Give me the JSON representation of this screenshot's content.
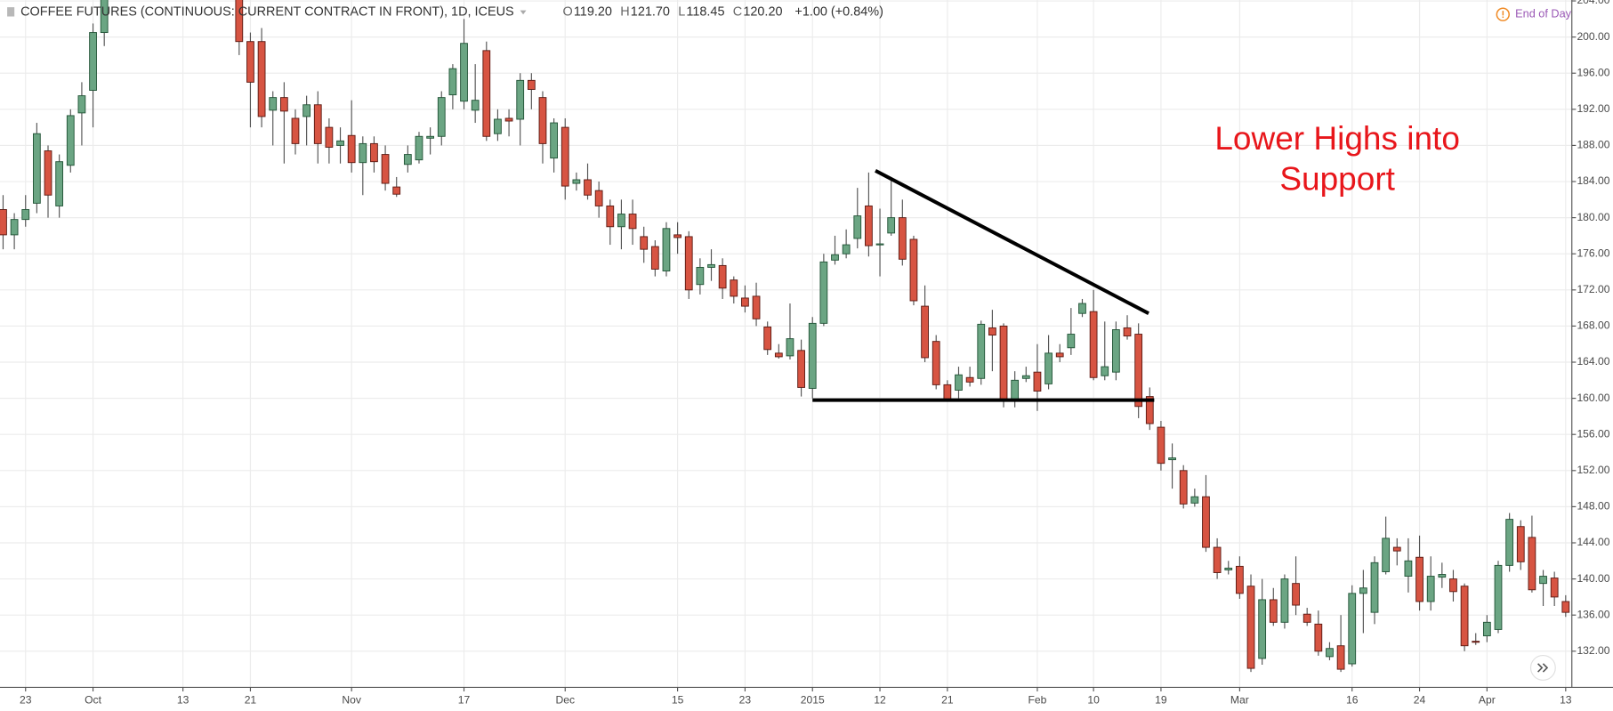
{
  "chart_data": {
    "type": "candlestick",
    "title": "COFFEE FUTURES (CONTINUOUS: CURRENT CONTRACT IN FRONT), 1D, ICEUS",
    "ohlc_legend": [
      {
        "key": "O",
        "value": "119.20"
      },
      {
        "key": "H",
        "value": "121.70"
      },
      {
        "key": "L",
        "value": "118.45"
      },
      {
        "key": "C",
        "value": "120.20"
      }
    ],
    "change": "+1.00 (+0.84%)",
    "status": "End of Day",
    "annotation": [
      "Lower Highs into",
      "Support"
    ],
    "annotation_color": "#e8161b",
    "up_color": "#6ba583",
    "down_color": "#d75442",
    "grid": true,
    "categories": [
      null,
      null,
      "23",
      null,
      null,
      null,
      null,
      null,
      "Oct",
      null,
      null,
      null,
      null,
      null,
      null,
      null,
      "13",
      null,
      null,
      null,
      null,
      null,
      "21",
      null,
      null,
      null,
      null,
      null,
      null,
      null,
      null,
      "Nov",
      null,
      null,
      null,
      null,
      null,
      null,
      null,
      null,
      null,
      "17",
      null,
      null,
      null,
      null,
      null,
      null,
      null,
      null,
      "Dec",
      null,
      null,
      null,
      null,
      null,
      null,
      null,
      null,
      null,
      "15",
      null,
      null,
      null,
      null,
      null,
      "23",
      null,
      null,
      null,
      null,
      null,
      "2015",
      null,
      null,
      null,
      null,
      null,
      "12",
      null,
      null,
      null,
      null,
      null,
      "21",
      null,
      null,
      null,
      null,
      null,
      null,
      null,
      "Feb",
      null,
      null,
      null,
      null,
      "10",
      null,
      null,
      null,
      null,
      null,
      "19",
      null,
      null,
      null,
      null,
      null,
      null,
      "Mar",
      null,
      null,
      null,
      null,
      null,
      null,
      null,
      null,
      null,
      "16",
      null,
      null,
      null,
      null,
      null,
      "24",
      null,
      null,
      null,
      null,
      null,
      "Apr",
      null,
      null,
      null,
      null,
      null,
      null,
      "13"
    ],
    "open": [
      180.9,
      178.1,
      179.8,
      181.6,
      187.4,
      181.3,
      185.8,
      191.6,
      194.1,
      200.5,
      null,
      null,
      null,
      null,
      null,
      null,
      null,
      null,
      null,
      null,
      null,
      205,
      199.5,
      199.5,
      191.9,
      193.3,
      191,
      191.2,
      192.5,
      190,
      188,
      189.1,
      186.1,
      188.2,
      187,
      183.4,
      185.9,
      186.4,
      188.8,
      189,
      193.6,
      192.9,
      191.9,
      198.5,
      189.3,
      191,
      190.9,
      195.2,
      193.3,
      186.6,
      190,
      183.8,
      184.2,
      183,
      181.3,
      179,
      180.4,
      177.9,
      176.8,
      174.1,
      178.1,
      177.9,
      172.6,
      174.5,
      174.7,
      173.1,
      171.1,
      171.3,
      167.9,
      165,
      164.7,
      165.3,
      161.1,
      168.3,
      175.3,
      176,
      177.7,
      181.3,
      177,
      178.3,
      180,
      177.6,
      170.2,
      166.3,
      161.5,
      160.9,
      162.3,
      162.2,
      167.8,
      168,
      159.9,
      162.2,
      162.9,
      161.6,
      165,
      165.6,
      169.4,
      169.6,
      162.5,
      162.9,
      167.8,
      167.1,
      160.2,
      156.8,
      153.2,
      152,
      148.4,
      149.1,
      143.5,
      141,
      141.4,
      139.2,
      131.2,
      137.7,
      135.2,
      139.5,
      136.1,
      135,
      131.4,
      132.6,
      130.6,
      138.4,
      136.3,
      140.8,
      143.5,
      140.3,
      142.4,
      137.5,
      140.2,
      140,
      139.2,
      133.1,
      133.7,
      134.4,
      141.5,
      145.8,
      144.6,
      139.5,
      140.1,
      137.5
    ],
    "close": [
      178.1,
      179.8,
      180.9,
      189.3,
      182.5,
      186.2,
      191.3,
      193.5,
      200.5,
      206,
      null,
      null,
      null,
      null,
      null,
      null,
      null,
      null,
      null,
      null,
      null,
      199.5,
      195,
      191.2,
      193.3,
      191.8,
      188.2,
      192.5,
      188.2,
      187.8,
      188.5,
      186.1,
      188.2,
      186.2,
      183.8,
      182.6,
      187,
      189,
      189,
      193.3,
      196.5,
      199.3,
      193,
      189,
      190.9,
      190.7,
      195.2,
      194.2,
      188.2,
      190.5,
      183.5,
      184.2,
      182.5,
      181.3,
      179,
      180.4,
      178.8,
      176.5,
      174.3,
      178.8,
      177.8,
      172,
      174.5,
      174.8,
      172.2,
      171.3,
      170.2,
      168.8,
      165.4,
      164.6,
      166.6,
      161.2,
      168.3,
      175.1,
      175.9,
      177,
      180.2,
      176.9,
      177.1,
      180,
      175.4,
      170.8,
      164.5,
      161.5,
      159.9,
      162.6,
      161.8,
      168.2,
      167,
      159.9,
      162,
      162.5,
      160.8,
      165,
      164.6,
      167.1,
      170.5,
      162.3,
      163.5,
      167.6,
      166.9,
      159.1,
      157.2,
      152.8,
      153.4,
      148.3,
      149.1,
      143.5,
      140.7,
      141.2,
      138.4,
      130.1,
      137.7,
      135.2,
      140,
      137.1,
      135.2,
      132,
      132.3,
      130,
      138.4,
      139,
      141.8,
      144.5,
      143.1,
      142,
      137.5,
      140.3,
      140.5,
      138.6,
      132.6,
      133,
      135.2,
      141.5,
      146.6,
      141.9,
      138.8,
      140.3,
      138,
      136.3
    ],
    "high": [
      182.5,
      180.5,
      182.5,
      190.5,
      188,
      187,
      192,
      195,
      201.5,
      207,
      null,
      null,
      null,
      null,
      null,
      null,
      null,
      null,
      null,
      null,
      null,
      206,
      200.5,
      201,
      194,
      195,
      192,
      193.5,
      194,
      191,
      190,
      193,
      189,
      189,
      188,
      184.5,
      188,
      189.5,
      190,
      194,
      197,
      202,
      197,
      199.5,
      192,
      192,
      196,
      196,
      194,
      191,
      191,
      185,
      186,
      184,
      182,
      182,
      182,
      179,
      177.5,
      179.5,
      179.5,
      178.5,
      175.5,
      176.5,
      175.5,
      173.5,
      172.5,
      172.8,
      168.5,
      166,
      170.5,
      166.5,
      169,
      176,
      178,
      178.7,
      183.3,
      185,
      181,
      184.5,
      182,
      178,
      172.5,
      167,
      162,
      163.5,
      163.5,
      168.6,
      169.8,
      168.3,
      163,
      163.5,
      166,
      167,
      166,
      170,
      171,
      172,
      168.5,
      168.5,
      169.2,
      168.3,
      161.2,
      157.5,
      155,
      152.6,
      150,
      151.5,
      144.5,
      142,
      142.5,
      140.5,
      140,
      139,
      140.5,
      142.5,
      136.8,
      136.5,
      133,
      136,
      139.3,
      141,
      142.5,
      146.9,
      144.5,
      144.5,
      144.8,
      142.5,
      141.8,
      141,
      139.5,
      134,
      136,
      142,
      147.3,
      146.5,
      147,
      141,
      140.8,
      138.2
    ],
    "low": [
      176.5,
      176.5,
      179,
      180.5,
      180,
      180,
      185,
      188,
      190,
      199,
      null,
      null,
      null,
      null,
      null,
      null,
      null,
      null,
      null,
      null,
      null,
      198,
      190,
      190,
      188,
      186,
      187,
      188,
      186,
      186,
      186,
      185,
      182.5,
      185,
      183,
      182.3,
      185,
      186,
      187,
      188,
      192,
      192,
      190.5,
      188.5,
      188.5,
      189,
      188,
      192,
      186,
      185,
      182,
      183,
      182,
      180,
      177,
      176.5,
      177,
      175,
      173.5,
      173.5,
      176,
      171,
      171.5,
      173,
      171,
      170.5,
      169.5,
      168,
      164.8,
      164.4,
      164.3,
      160.2,
      160,
      168,
      174.8,
      175.5,
      176.6,
      175.7,
      173.5,
      178,
      174.7,
      170.3,
      164,
      161,
      159.8,
      160,
      161.3,
      161.5,
      163,
      159,
      159,
      161.8,
      158.6,
      161,
      164,
      164.8,
      169,
      162,
      162,
      162,
      166.5,
      157.8,
      156.5,
      152,
      150,
      147.8,
      148,
      143,
      140,
      140.5,
      137.8,
      129.7,
      130.5,
      134.8,
      134.5,
      136,
      134.8,
      131.5,
      131,
      129.7,
      130.3,
      134,
      135,
      140.5,
      141.5,
      138.5,
      136.5,
      136.5,
      139,
      137.5,
      132,
      132.7,
      133,
      134,
      140.8,
      141,
      138.5,
      137,
      137,
      135.8
    ],
    "drawings": [
      {
        "x": [
          77.6,
          101.9
        ],
        "y": [
          185.2,
          169.4
        ],
        "color": "#000000"
      },
      {
        "x": [
          72,
          102.4
        ],
        "y": [
          159.8,
          159.8
        ],
        "color": "#000000"
      }
    ],
    "ylim": [
      128,
      204.1
    ],
    "yticks": [
      {
        "value": 132,
        "label": "132.00"
      },
      {
        "value": 136,
        "label": "136.00"
      },
      {
        "value": 140,
        "label": "140.00"
      },
      {
        "value": 144,
        "label": "144.00"
      },
      {
        "value": 148,
        "label": "148.00"
      },
      {
        "value": 152,
        "label": "152.00"
      },
      {
        "value": 156,
        "label": "156.00"
      },
      {
        "value": 160,
        "label": "160.00"
      },
      {
        "value": 164,
        "label": "164.00"
      },
      {
        "value": 168,
        "label": "168.00"
      },
      {
        "value": 172,
        "label": "172.00"
      },
      {
        "value": 176,
        "label": "176.00"
      },
      {
        "value": 180,
        "label": "180.00"
      },
      {
        "value": 184,
        "label": "184.00"
      },
      {
        "value": 188,
        "label": "188.00"
      },
      {
        "value": 192,
        "label": "192.00"
      },
      {
        "value": 196,
        "label": "196.00"
      },
      {
        "value": 200,
        "label": "200.00"
      },
      {
        "value": 204,
        "label": "204.00"
      }
    ]
  }
}
